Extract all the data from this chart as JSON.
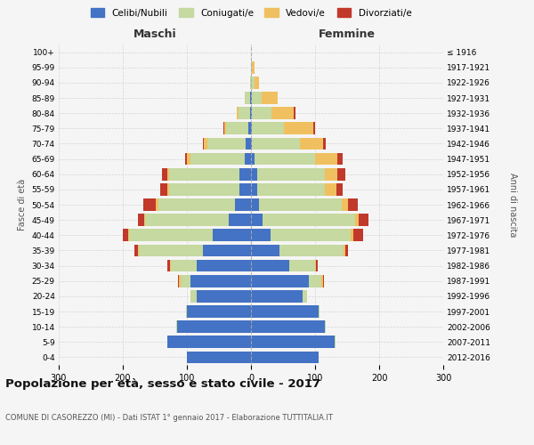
{
  "age_groups": [
    "0-4",
    "5-9",
    "10-14",
    "15-19",
    "20-24",
    "25-29",
    "30-34",
    "35-39",
    "40-44",
    "45-49",
    "50-54",
    "55-59",
    "60-64",
    "65-69",
    "70-74",
    "75-79",
    "80-84",
    "85-89",
    "90-94",
    "95-99",
    "100+"
  ],
  "birth_years": [
    "2012-2016",
    "2007-2011",
    "2002-2006",
    "1997-2001",
    "1992-1996",
    "1987-1991",
    "1982-1986",
    "1977-1981",
    "1972-1976",
    "1967-1971",
    "1962-1966",
    "1957-1961",
    "1952-1956",
    "1947-1951",
    "1942-1946",
    "1937-1941",
    "1932-1936",
    "1927-1931",
    "1922-1926",
    "1917-1921",
    "≤ 1916"
  ],
  "males": {
    "celibi": [
      100,
      130,
      115,
      100,
      85,
      95,
      85,
      75,
      60,
      35,
      25,
      18,
      18,
      10,
      8,
      4,
      2,
      2,
      0,
      0,
      0
    ],
    "coniugati": [
      0,
      0,
      2,
      2,
      10,
      15,
      40,
      100,
      130,
      130,
      120,
      110,
      110,
      85,
      60,
      35,
      18,
      8,
      2,
      0,
      0
    ],
    "vedovi": [
      0,
      0,
      0,
      0,
      0,
      2,
      2,
      2,
      2,
      2,
      3,
      3,
      3,
      5,
      5,
      2,
      2,
      0,
      0,
      0,
      0
    ],
    "divorziati": [
      0,
      0,
      0,
      0,
      0,
      2,
      3,
      5,
      8,
      10,
      20,
      10,
      8,
      3,
      2,
      2,
      0,
      0,
      0,
      0,
      0
    ]
  },
  "females": {
    "nubili": [
      105,
      130,
      115,
      105,
      80,
      90,
      60,
      45,
      30,
      18,
      12,
      10,
      10,
      5,
      2,
      2,
      2,
      2,
      0,
      0,
      0
    ],
    "coniugate": [
      0,
      2,
      2,
      2,
      8,
      20,
      40,
      100,
      125,
      145,
      130,
      105,
      105,
      95,
      75,
      50,
      30,
      15,
      5,
      2,
      0
    ],
    "vedove": [
      0,
      0,
      0,
      0,
      0,
      2,
      2,
      2,
      5,
      5,
      10,
      18,
      20,
      35,
      35,
      45,
      35,
      25,
      8,
      3,
      0
    ],
    "divorziate": [
      0,
      0,
      0,
      0,
      0,
      2,
      2,
      5,
      15,
      15,
      15,
      10,
      12,
      8,
      5,
      3,
      2,
      0,
      0,
      0,
      0
    ]
  },
  "colors": {
    "celibi_nubili": "#4472c4",
    "coniugati": "#c5d9a0",
    "vedovi": "#f0c060",
    "divorziati": "#c0392b"
  },
  "title": "Popolazione per età, sesso e stato civile - 2017",
  "subtitle": "COMUNE DI CASOREZZO (MI) - Dati ISTAT 1° gennaio 2017 - Elaborazione TUTTITALIA.IT",
  "xlabel_left": "Maschi",
  "xlabel_right": "Femmine",
  "ylabel_left": "Fasce di età",
  "ylabel_right": "Anni di nascita",
  "xlim": 300,
  "bg_color": "#f5f5f5",
  "grid_color": "#cccccc"
}
